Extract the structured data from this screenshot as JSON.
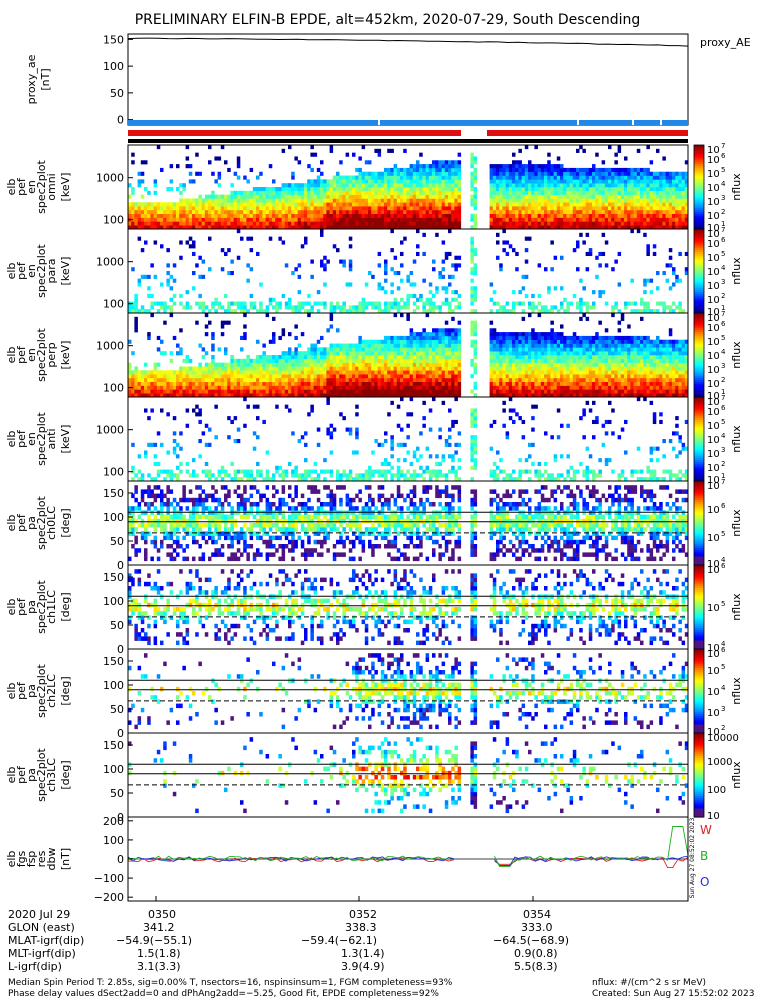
{
  "title": "PRELIMINARY ELFIN-B EPDE, alt=452km, 2020-07-29, South Descending",
  "chart_data": [
    {
      "type": "line",
      "id": "proxy_ae",
      "ylabel": [
        "proxy_ae",
        "[nT]"
      ],
      "legend": "proxy_AE",
      "ylim": [
        -10,
        160
      ],
      "yticks": [
        "150",
        "100",
        "50",
        "0"
      ],
      "ytick_values": [
        150,
        100,
        50,
        0
      ],
      "series": [
        {
          "values_start": 152,
          "values_end": 138
        }
      ]
    },
    {
      "type": "heatmap",
      "id": "pef_en_omni",
      "ylabel": [
        "elb",
        "pef",
        "en",
        "spec2plot",
        "omni",
        "[keV]"
      ],
      "yticks": [
        "1000",
        "100"
      ],
      "ytick_values": [
        1000,
        100
      ],
      "colorbar": {
        "label": "nflux",
        "ticks": [
          "10",
          "10",
          "10",
          "10",
          "10",
          "10",
          "10"
        ],
        "exponents": [
          "7",
          "6",
          "5",
          "4",
          "3",
          "2",
          "1"
        ]
      }
    },
    {
      "type": "heatmap",
      "id": "pef_en_para",
      "ylabel": [
        "elb",
        "pef",
        "en",
        "spec2plot",
        "para",
        "[keV]"
      ],
      "yticks": [
        "1000",
        "100"
      ],
      "ytick_values": [
        1000,
        100
      ],
      "colorbar": {
        "label": "nflux",
        "ticks": [
          "10",
          "10",
          "10",
          "10",
          "10",
          "10",
          "10"
        ],
        "exponents": [
          "7",
          "6",
          "5",
          "4",
          "3",
          "2",
          "1"
        ]
      }
    },
    {
      "type": "heatmap",
      "id": "pef_en_perp",
      "ylabel": [
        "elb",
        "pef",
        "en",
        "spec2plot",
        "perp",
        "[keV]"
      ],
      "yticks": [
        "1000",
        "100"
      ],
      "ytick_values": [
        1000,
        100
      ],
      "colorbar": {
        "label": "nflux",
        "ticks": [
          "10",
          "10",
          "10",
          "10",
          "10",
          "10",
          "10"
        ],
        "exponents": [
          "7",
          "6",
          "5",
          "4",
          "3",
          "2",
          "1"
        ]
      }
    },
    {
      "type": "heatmap",
      "id": "pef_en_anti",
      "ylabel": [
        "elb",
        "pef",
        "en",
        "spec2plot",
        "anti",
        "[keV]"
      ],
      "yticks": [
        "1000",
        "100"
      ],
      "ytick_values": [
        1000,
        100
      ],
      "colorbar": {
        "label": "nflux",
        "ticks": [
          "10",
          "10",
          "10",
          "10",
          "10",
          "10",
          "10"
        ],
        "exponents": [
          "7",
          "6",
          "5",
          "4",
          "3",
          "2",
          "1"
        ]
      }
    },
    {
      "type": "heatmap",
      "id": "pef_pa_ch0",
      "ylabel": [
        "elb",
        "pef",
        "pa",
        "spec2plot",
        "ch0LC",
        "[deg]"
      ],
      "yticks": [
        "150",
        "100",
        "50",
        "0"
      ],
      "ytick_values": [
        150,
        100,
        50,
        0
      ],
      "colorbar": {
        "label": "nflux",
        "ticks": [
          "10",
          "10",
          "10",
          "10"
        ],
        "exponents": [
          "7",
          "6",
          "5",
          "4"
        ]
      }
    },
    {
      "type": "heatmap",
      "id": "pef_pa_ch1",
      "ylabel": [
        "elb",
        "pef",
        "pa",
        "spec2plot",
        "ch1LC",
        "[deg]"
      ],
      "yticks": [
        "150",
        "100",
        "50",
        "0"
      ],
      "ytick_values": [
        150,
        100,
        50,
        0
      ],
      "colorbar": {
        "label": "nflux",
        "ticks": [
          "10",
          "10",
          "10"
        ],
        "exponents": [
          "6",
          "5",
          "4"
        ]
      }
    },
    {
      "type": "heatmap",
      "id": "pef_pa_ch2",
      "ylabel": [
        "elb",
        "pef",
        "pa",
        "spec2plot",
        "ch2LC",
        "[deg]"
      ],
      "yticks": [
        "150",
        "100",
        "50",
        "0"
      ],
      "ytick_values": [
        150,
        100,
        50,
        0
      ],
      "colorbar": {
        "label": "nflux",
        "ticks": [
          "10",
          "10",
          "10",
          "10",
          "10"
        ],
        "exponents": [
          "6",
          "5",
          "4",
          "3",
          "2"
        ]
      }
    },
    {
      "type": "heatmap",
      "id": "pef_pa_ch3",
      "ylabel": [
        "elb",
        "pef",
        "pa",
        "spec2plot",
        "ch3LC",
        "[deg]"
      ],
      "yticks": [
        "150",
        "100",
        "50",
        "0"
      ],
      "ytick_values": [
        150,
        100,
        50,
        0
      ],
      "colorbar": {
        "label": "nflux",
        "ticks": [
          "10000",
          "1000",
          "100",
          "10"
        ],
        "exponents": [
          "",
          "",
          "",
          ""
        ]
      }
    },
    {
      "type": "line",
      "id": "fgs_res_dbw",
      "ylabel": [
        "elb",
        "fgs",
        "fsp",
        "res",
        "dbw",
        "[nT]"
      ],
      "yticks": [
        "200",
        "100",
        "0",
        "−100",
        "−200"
      ],
      "ytick_values": [
        200,
        100,
        0,
        -100,
        -200
      ],
      "ylim": [
        -220,
        220
      ],
      "legend": [
        {
          "label": "W",
          "color": "#e02020"
        },
        {
          "label": "B",
          "color": "#20b020"
        },
        {
          "label": "O",
          "color": "#2030e0"
        }
      ],
      "side_stamp": "Sun Aug 27 08:52:02 2023",
      "x_tick_labels": [
        "0350",
        "0352",
        "0354"
      ]
    }
  ],
  "ephemeris": {
    "date": "2020 Jul 29",
    "rows": [
      {
        "label": "GLON (east)",
        "values": [
          "341.2",
          "338.3",
          "333.0"
        ]
      },
      {
        "label": "MLAT-igrf(dip)",
        "values": [
          "−54.9(−55.1)",
          "−59.4(−62.1)",
          "−64.5(−68.9)"
        ]
      },
      {
        "label": "MLT-igrf(dip)",
        "values": [
          "1.5(1.8)",
          "1.3(1.4)",
          "0.9(0.8)"
        ]
      },
      {
        "label": "L-igrf(dip)",
        "values": [
          "3.1(3.3)",
          "3.9(4.9)",
          "5.5(8.3)"
        ]
      }
    ]
  },
  "footer": {
    "line1": "Median Spin Period T: 2.85s, sig=0.00% T, nsectors=16, nspinsinsum=1, FGM completeness=93%",
    "line2": "Phase delay values dSect2add=0 and dPhAng2add=−5.25, Good Fit, EPDE completeness=92%",
    "right1": "nflux: #/(cm^2 s sr MeV)",
    "right2": "Created: Sun Aug 27 15:52:02 2023"
  },
  "colors": {
    "blue_bar": "#2288e8",
    "red_bar": "#e01010",
    "black_bar": "#000000"
  }
}
